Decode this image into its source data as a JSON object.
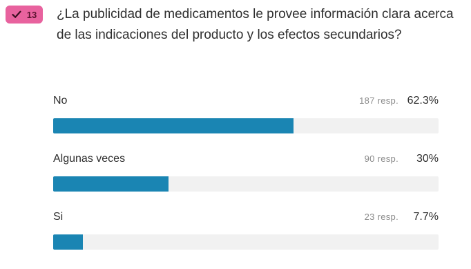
{
  "question": {
    "number": "13",
    "text": "¿La publicidad de medicamentos le provee información clara acerca de las indicaciones del producto y los efectos secundarios?",
    "badge_color": "#e8629e"
  },
  "answers": [
    {
      "label": "No",
      "responses": "187 resp.",
      "percent_text": "62.3%",
      "percent": 62.3
    },
    {
      "label": "Algunas veces",
      "responses": "90 resp.",
      "percent_text": "30%",
      "percent": 30
    },
    {
      "label": "Si",
      "responses": "23 resp.",
      "percent_text": "7.7%",
      "percent": 7.7
    }
  ],
  "colors": {
    "bar_fill": "#1a85b3",
    "bar_track": "#f1f1f1"
  }
}
